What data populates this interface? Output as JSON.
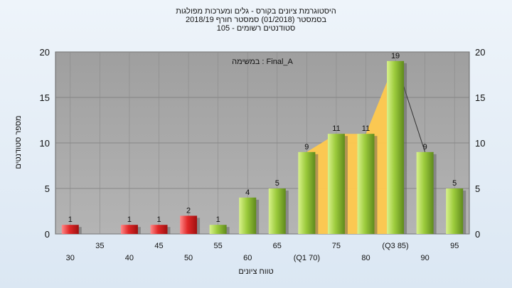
{
  "header": {
    "title_line1": "היסטוגרמת ציונים בקורס - גלים ומערכות מפולגות",
    "title_line2": "בסמסטר  (01/2018)  סמסטר חורף  2018/19",
    "title_line3": "סטודנטים רשומים - 105"
  },
  "chart_data": {
    "type": "bar",
    "title": "היסטוגרמת ציונים בקורס - גלים ומערכות מפולגות",
    "annotation": "במשימה : Final_A",
    "xlabel": "טווח ציונים",
    "ylabel": "מספר סטודנטים",
    "ylim": [
      0,
      20
    ],
    "yticks": [
      0,
      5,
      10,
      15,
      20
    ],
    "categories": [
      "30",
      "35",
      "40",
      "45",
      "50",
      "55",
      "60",
      "65",
      "(Q1 70)",
      "75",
      "80",
      "(Q3 85)",
      "90",
      "95"
    ],
    "values": [
      1,
      0,
      1,
      1,
      2,
      1,
      4,
      5,
      9,
      11,
      11,
      19,
      9,
      5
    ],
    "bar_colors": [
      "#d42a2a",
      "#d42a2a",
      "#d42a2a",
      "#d42a2a",
      "#d42a2a",
      "#8fc23a",
      "#8fc23a",
      "#8fc23a",
      "#8fc23a",
      "#8fc23a",
      "#8fc23a",
      "#8fc23a",
      "#8fc23a",
      "#8fc23a"
    ],
    "quartile_area": {
      "from_category": "(Q1 70)",
      "to_category": "(Q3 85)",
      "color": "#ffc94d"
    },
    "grid": true,
    "plot_background": "#a6a6a6"
  }
}
